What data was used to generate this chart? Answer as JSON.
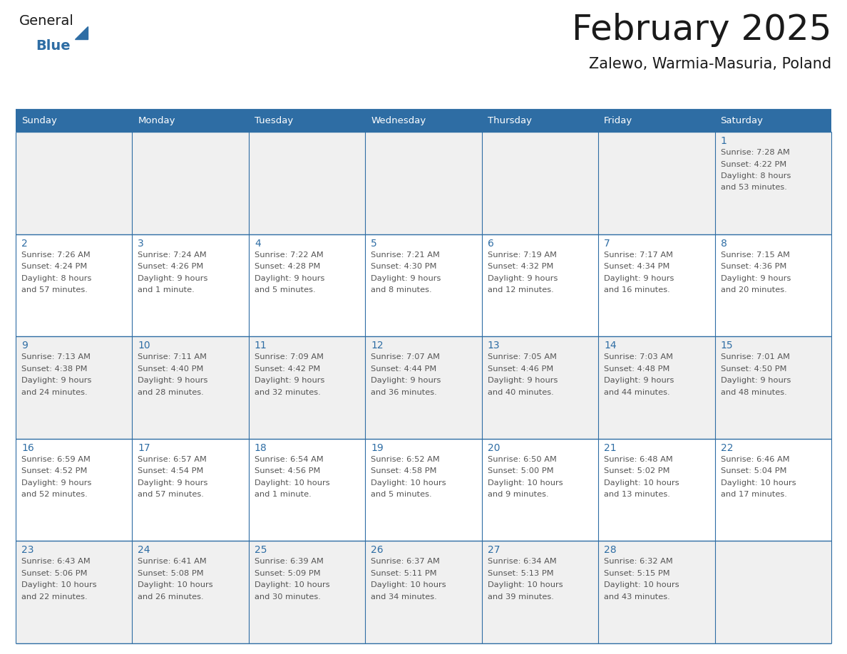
{
  "title": "February 2025",
  "subtitle": "Zalewo, Warmia-Masuria, Poland",
  "days_of_week": [
    "Sunday",
    "Monday",
    "Tuesday",
    "Wednesday",
    "Thursday",
    "Friday",
    "Saturday"
  ],
  "header_bg": "#2E6DA4",
  "header_text": "#FFFFFF",
  "cell_bg_odd": "#F0F0F0",
  "cell_bg_even": "#FFFFFF",
  "cell_text": "#555555",
  "day_num_color": "#2E6DA4",
  "border_color": "#2E6DA4",
  "title_color": "#1A1A1A",
  "subtitle_color": "#1A1A1A",
  "logo_general_color": "#1A1A1A",
  "logo_blue_color": "#2E6DA4",
  "calendar": [
    [
      null,
      null,
      null,
      null,
      null,
      null,
      {
        "day": 1,
        "sunrise": "7:28 AM",
        "sunset": "4:22 PM",
        "daylight": "8 hours and 53 minutes"
      }
    ],
    [
      {
        "day": 2,
        "sunrise": "7:26 AM",
        "sunset": "4:24 PM",
        "daylight": "8 hours and 57 minutes"
      },
      {
        "day": 3,
        "sunrise": "7:24 AM",
        "sunset": "4:26 PM",
        "daylight": "9 hours and 1 minute"
      },
      {
        "day": 4,
        "sunrise": "7:22 AM",
        "sunset": "4:28 PM",
        "daylight": "9 hours and 5 minutes"
      },
      {
        "day": 5,
        "sunrise": "7:21 AM",
        "sunset": "4:30 PM",
        "daylight": "9 hours and 8 minutes"
      },
      {
        "day": 6,
        "sunrise": "7:19 AM",
        "sunset": "4:32 PM",
        "daylight": "9 hours and 12 minutes"
      },
      {
        "day": 7,
        "sunrise": "7:17 AM",
        "sunset": "4:34 PM",
        "daylight": "9 hours and 16 minutes"
      },
      {
        "day": 8,
        "sunrise": "7:15 AM",
        "sunset": "4:36 PM",
        "daylight": "9 hours and 20 minutes"
      }
    ],
    [
      {
        "day": 9,
        "sunrise": "7:13 AM",
        "sunset": "4:38 PM",
        "daylight": "9 hours and 24 minutes"
      },
      {
        "day": 10,
        "sunrise": "7:11 AM",
        "sunset": "4:40 PM",
        "daylight": "9 hours and 28 minutes"
      },
      {
        "day": 11,
        "sunrise": "7:09 AM",
        "sunset": "4:42 PM",
        "daylight": "9 hours and 32 minutes"
      },
      {
        "day": 12,
        "sunrise": "7:07 AM",
        "sunset": "4:44 PM",
        "daylight": "9 hours and 36 minutes"
      },
      {
        "day": 13,
        "sunrise": "7:05 AM",
        "sunset": "4:46 PM",
        "daylight": "9 hours and 40 minutes"
      },
      {
        "day": 14,
        "sunrise": "7:03 AM",
        "sunset": "4:48 PM",
        "daylight": "9 hours and 44 minutes"
      },
      {
        "day": 15,
        "sunrise": "7:01 AM",
        "sunset": "4:50 PM",
        "daylight": "9 hours and 48 minutes"
      }
    ],
    [
      {
        "day": 16,
        "sunrise": "6:59 AM",
        "sunset": "4:52 PM",
        "daylight": "9 hours and 52 minutes"
      },
      {
        "day": 17,
        "sunrise": "6:57 AM",
        "sunset": "4:54 PM",
        "daylight": "9 hours and 57 minutes"
      },
      {
        "day": 18,
        "sunrise": "6:54 AM",
        "sunset": "4:56 PM",
        "daylight": "10 hours and 1 minute"
      },
      {
        "day": 19,
        "sunrise": "6:52 AM",
        "sunset": "4:58 PM",
        "daylight": "10 hours and 5 minutes"
      },
      {
        "day": 20,
        "sunrise": "6:50 AM",
        "sunset": "5:00 PM",
        "daylight": "10 hours and 9 minutes"
      },
      {
        "day": 21,
        "sunrise": "6:48 AM",
        "sunset": "5:02 PM",
        "daylight": "10 hours and 13 minutes"
      },
      {
        "day": 22,
        "sunrise": "6:46 AM",
        "sunset": "5:04 PM",
        "daylight": "10 hours and 17 minutes"
      }
    ],
    [
      {
        "day": 23,
        "sunrise": "6:43 AM",
        "sunset": "5:06 PM",
        "daylight": "10 hours and 22 minutes"
      },
      {
        "day": 24,
        "sunrise": "6:41 AM",
        "sunset": "5:08 PM",
        "daylight": "10 hours and 26 minutes"
      },
      {
        "day": 25,
        "sunrise": "6:39 AM",
        "sunset": "5:09 PM",
        "daylight": "10 hours and 30 minutes"
      },
      {
        "day": 26,
        "sunrise": "6:37 AM",
        "sunset": "5:11 PM",
        "daylight": "10 hours and 34 minutes"
      },
      {
        "day": 27,
        "sunrise": "6:34 AM",
        "sunset": "5:13 PM",
        "daylight": "10 hours and 39 minutes"
      },
      {
        "day": 28,
        "sunrise": "6:32 AM",
        "sunset": "5:15 PM",
        "daylight": "10 hours and 43 minutes"
      },
      null
    ]
  ]
}
